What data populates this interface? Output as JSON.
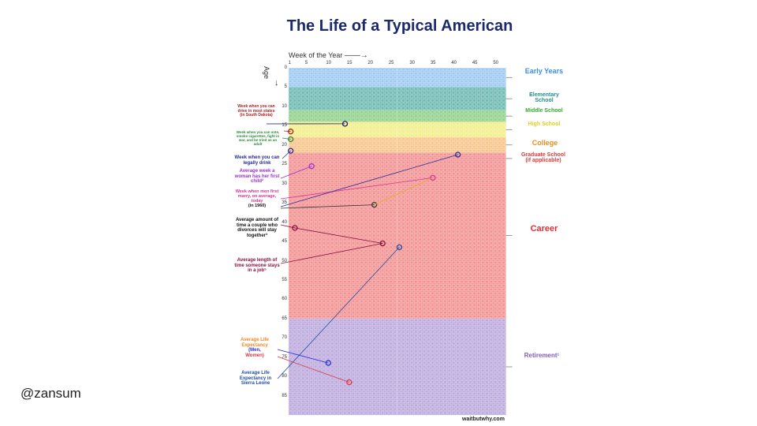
{
  "title": "The Life of a Typical American",
  "handle": "@zansum",
  "credit": "waitbutwhy.com",
  "axes": {
    "week_title": "Week of the Year",
    "age_title": "Age",
    "week_ticks": [
      "1",
      "5",
      "10",
      "15",
      "20",
      "25",
      "30",
      "35",
      "40",
      "45",
      "50"
    ],
    "age_ticks": [
      "0",
      "5",
      "10",
      "15",
      "20",
      "25",
      "30",
      "35",
      "40",
      "45",
      "50",
      "55",
      "60",
      "65",
      "70",
      "75",
      "80",
      "85"
    ]
  },
  "stages": [
    {
      "label": "Early Years",
      "color": "#3b8fe0"
    },
    {
      "label": "Elementary School",
      "color": "#1f8f8a"
    },
    {
      "label": "Middle School",
      "color": "#38a838"
    },
    {
      "label": "High School",
      "color": "#e0d020"
    },
    {
      "label": "College",
      "color": "#f08a20"
    },
    {
      "label": "Graduate School (if applicable)",
      "color": "#e03a3a"
    },
    {
      "label": "Career",
      "color": "#e03030"
    },
    {
      "label": "Retirement¹",
      "color": "#7b5db8"
    }
  ],
  "notes": {
    "drive": "Week when you can drive in most states (in South Dakota)",
    "vote": "Week when you can vote, smoke cigarettes, fight in war, and be tried as an adult",
    "drink": "Week when you can legally drink",
    "child": "Average week a woman has her first child²",
    "marry": "Week when men first marry, on average, today",
    "marry_1960": "(in 1960)",
    "divorce": "Average amount of time a couple who divorces will stay together³",
    "job": "Average length of time someone stays in a job⁵",
    "life_title": "Average Life Expectancy",
    "life_men": "(Men,",
    "life_women": "Women)",
    "sierra": "Average Life Expectancy in Sierra Leone"
  },
  "colors": {
    "title": "#1c2a6b",
    "early": "#9cc8f2",
    "elementary": "#6bb8b0",
    "middle": "#8fd08a",
    "high": "#f2ee88",
    "college": "#f7c48a",
    "career": "#f29090",
    "retirement": "#bba8dc",
    "drive": "#b02020",
    "vote": "#2a8a3a",
    "drink": "#2a2a9a",
    "child": "#9b30d0",
    "marry": "#e0309a",
    "divorce": "#111111",
    "job": "#8a1040",
    "life": "#f08a20",
    "sierra": "#1f4fa0"
  }
}
